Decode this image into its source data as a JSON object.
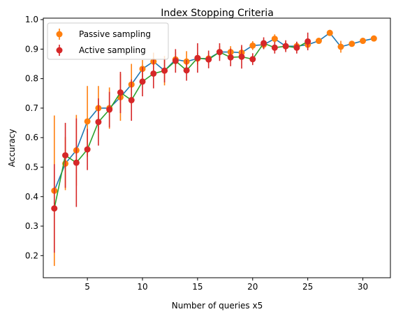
{
  "chart_data": {
    "type": "line",
    "title": "Index Stopping Criteria",
    "xlabel": "Number of queries x5",
    "ylabel": "Accuracy",
    "xlim": [
      1.0,
      32.5
    ],
    "ylim": [
      0.125,
      1.005
    ],
    "x_ticks": [
      5,
      10,
      15,
      20,
      25,
      30
    ],
    "y_ticks": [
      0.2,
      0.3,
      0.4,
      0.5,
      0.6,
      0.7,
      0.8,
      0.9,
      1.0
    ],
    "x_tick_labels": [
      "5",
      "10",
      "15",
      "20",
      "25",
      "30"
    ],
    "y_tick_labels": [
      "0.2",
      "0.3",
      "0.4",
      "0.5",
      "0.6",
      "0.7",
      "0.8",
      "0.9",
      "1.0"
    ],
    "grid": false,
    "legend_position": "top-left",
    "series": [
      {
        "name": "Passive sampling",
        "line_color": "#1f77b4",
        "marker_color": "#ff7f0e",
        "x": [
          2,
          3,
          4,
          5,
          6,
          7,
          8,
          9,
          10,
          11,
          12,
          13,
          14,
          15,
          16,
          17,
          18,
          19,
          20,
          21,
          22,
          23,
          24,
          25,
          26,
          27,
          28,
          29,
          30,
          31
        ],
        "y": [
          0.42,
          0.512,
          0.557,
          0.655,
          0.7,
          0.7,
          0.737,
          0.78,
          0.833,
          0.858,
          0.827,
          0.865,
          0.858,
          0.868,
          0.868,
          0.89,
          0.89,
          0.888,
          0.912,
          0.915,
          0.935,
          0.91,
          0.91,
          0.915,
          0.928,
          0.955,
          0.908,
          0.918,
          0.928,
          0.936
        ],
        "err": [
          0.255,
          0.09,
          0.12,
          0.12,
          0.075,
          0.07,
          0.08,
          0.07,
          0.03,
          0.03,
          0.05,
          0.025,
          0.035,
          0.02,
          0.02,
          0.02,
          0.02,
          0.02,
          0.015,
          0.015,
          0.015,
          0.015,
          0.015,
          0.015,
          0.01,
          0.01,
          0.02,
          0.01,
          0.01,
          0.01
        ]
      },
      {
        "name": "Active sampling",
        "line_color": "#2ca02c",
        "marker_color": "#d62728",
        "x": [
          2,
          3,
          4,
          5,
          6,
          7,
          8,
          9,
          10,
          11,
          12,
          13,
          14,
          15,
          16,
          17,
          18,
          19,
          20,
          21,
          22,
          23,
          24,
          25
        ],
        "y": [
          0.36,
          0.54,
          0.515,
          0.56,
          0.653,
          0.695,
          0.753,
          0.727,
          0.79,
          0.817,
          0.827,
          0.86,
          0.828,
          0.87,
          0.865,
          0.89,
          0.872,
          0.874,
          0.866,
          0.92,
          0.905,
          0.91,
          0.905,
          0.926
        ],
        "err": [
          0.15,
          0.11,
          0.15,
          0.07,
          0.08,
          0.06,
          0.07,
          0.07,
          0.05,
          0.05,
          0.04,
          0.04,
          0.035,
          0.05,
          0.03,
          0.03,
          0.03,
          0.04,
          0.02,
          0.02,
          0.02,
          0.02,
          0.02,
          0.03
        ]
      }
    ]
  }
}
